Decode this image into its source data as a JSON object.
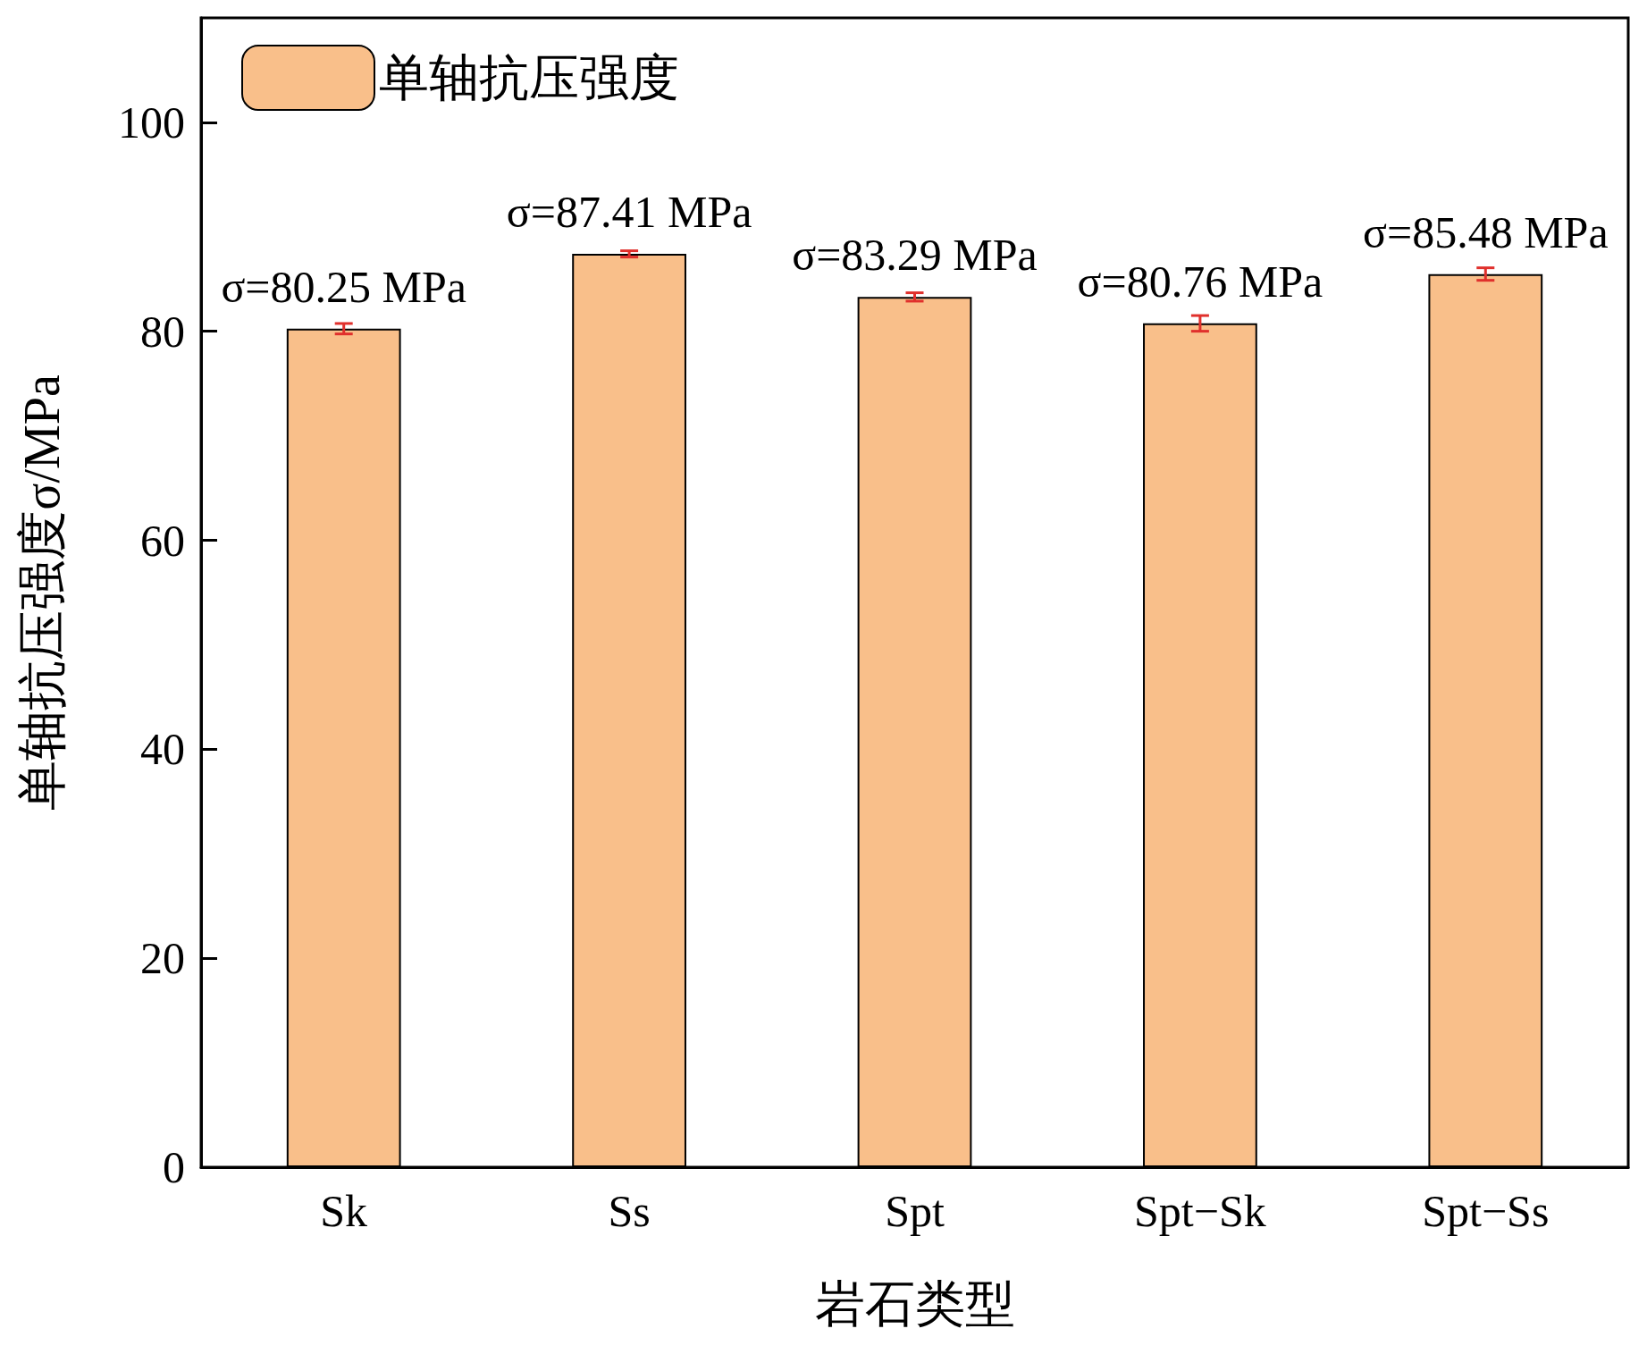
{
  "chart_data": {
    "type": "bar",
    "xlabel": "岩石类型",
    "ylabel": "单轴抗压强度σ/MPa",
    "categories": [
      "Sk",
      "Ss",
      "Spt",
      "Spt−Sk",
      "Spt−Ss"
    ],
    "series": [
      {
        "name": "单轴抗压强度",
        "color": "#f9bf8a",
        "values": [
          80.25,
          87.41,
          83.29,
          80.76,
          85.48
        ],
        "errors": [
          0.5,
          0.3,
          0.4,
          0.75,
          0.6
        ],
        "value_labels": [
          "σ=80.25 MPa",
          "σ=87.41 MPa",
          "σ=83.29 MPa",
          "σ=80.76 MPa",
          "σ=85.48 MPa"
        ]
      }
    ],
    "ylim": [
      0,
      110
    ],
    "yticks": [
      0,
      20,
      40,
      60,
      80,
      100
    ],
    "grid": false,
    "legend": "top left"
  }
}
